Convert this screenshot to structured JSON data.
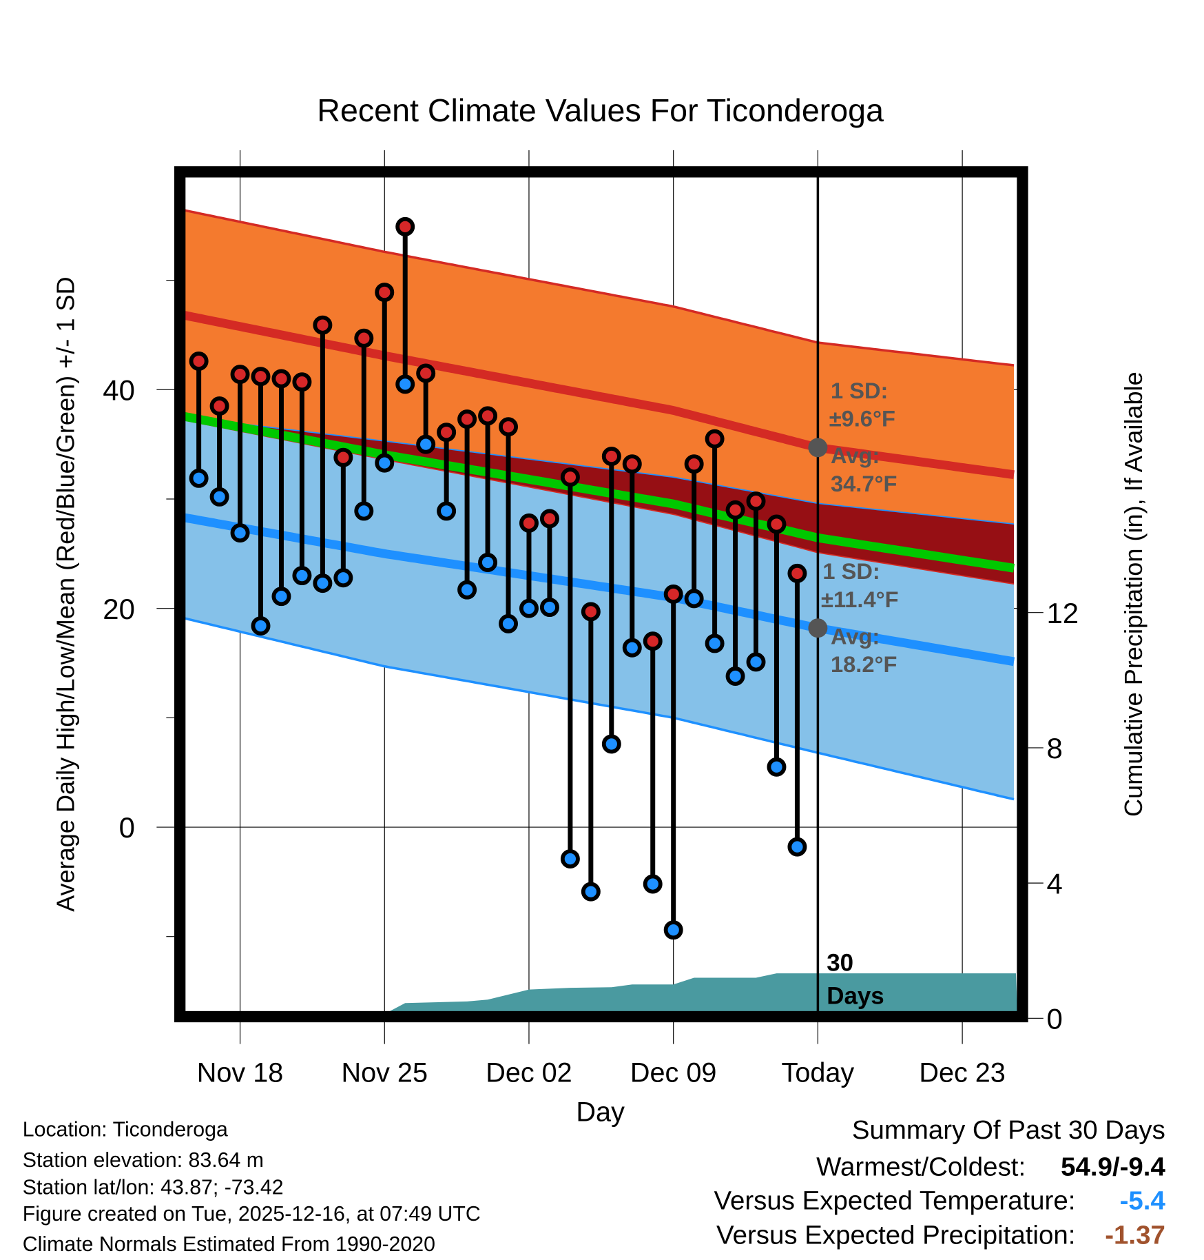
{
  "chart_data": {
    "type": "line",
    "title": "Recent Climate Values For Ticonderoga",
    "xlabel": "Day",
    "ylabel": "Average Daily High/Low/Mean (Red/Blue/Green) +/- 1 SD",
    "ylabel_right": "Cumulative Precipitation (in), If Available",
    "x_tick_labels": [
      "Nov 18",
      "Nov 25",
      "Dec 02",
      "Dec 09",
      "Today",
      "Dec 23"
    ],
    "x_tick_days": [
      3,
      10,
      17,
      24,
      31,
      38
    ],
    "x_day_zero": "Nov 15",
    "xlim_days": [
      0.3,
      40.6
    ],
    "y_tick_labels": [
      "40",
      "20",
      "0"
    ],
    "y_ticks": [
      40,
      20,
      0
    ],
    "y_minor_ticks": [
      50,
      30,
      10,
      -10
    ],
    "ylim": [
      -16.8,
      57.6
    ],
    "y_right_tick_labels": [
      "12",
      "8",
      "4",
      "0"
    ],
    "y_right_ticks": [
      12,
      8,
      4,
      0
    ],
    "grid": true,
    "series": [
      {
        "name": "Daily High",
        "color": "#d62728",
        "days": [
          1,
          2,
          3,
          4,
          5,
          6,
          7,
          8,
          9,
          10,
          11,
          12,
          13,
          14,
          15,
          16,
          17,
          18,
          19,
          20,
          21,
          22,
          23,
          24,
          25,
          26,
          27,
          28,
          29,
          30
        ],
        "values": [
          42.6,
          38.5,
          41.4,
          41.2,
          41.0,
          40.7,
          45.9,
          33.8,
          44.7,
          48.9,
          54.9,
          41.5,
          36.1,
          37.3,
          37.6,
          36.6,
          27.8,
          28.2,
          32.0,
          19.7,
          33.9,
          33.2,
          17.0,
          21.3,
          33.2,
          35.5,
          29.0,
          29.8,
          27.7,
          23.2
        ]
      },
      {
        "name": "Daily Low",
        "color": "#1e90ff",
        "days": [
          1,
          2,
          3,
          4,
          5,
          6,
          7,
          8,
          9,
          10,
          11,
          12,
          13,
          14,
          15,
          16,
          17,
          18,
          19,
          20,
          21,
          22,
          23,
          24,
          25,
          26,
          27,
          28,
          29,
          30
        ],
        "values": [
          31.9,
          30.2,
          26.9,
          18.4,
          21.1,
          23.0,
          22.3,
          22.8,
          28.9,
          33.3,
          40.5,
          35.0,
          28.9,
          21.7,
          24.2,
          18.6,
          20.0,
          20.1,
          -2.9,
          -5.9,
          7.6,
          16.4,
          -5.2,
          -9.4,
          20.9,
          16.8,
          13.8,
          15.1,
          5.5,
          -1.8
        ]
      }
    ],
    "normals": {
      "days": [
        0.3,
        10,
        24,
        31,
        40.6
      ],
      "high_avg": [
        46.8,
        43.1,
        38.1,
        34.7,
        32.2
      ],
      "high_sd": [
        9.6,
        9.5,
        9.5,
        9.6,
        10.0
      ],
      "low_avg": [
        28.3,
        25.0,
        21.0,
        18.2,
        15.1
      ],
      "low_sd": [
        9.2,
        10.3,
        11.0,
        11.4,
        12.6
      ]
    },
    "precip": {
      "days": [
        9.6,
        11,
        14,
        15,
        17,
        19,
        21,
        22,
        24,
        25,
        28,
        29,
        40.6
      ],
      "values": [
        0,
        0.45,
        0.5,
        0.55,
        0.85,
        0.9,
        0.92,
        1.0,
        1.0,
        1.2,
        1.2,
        1.33,
        1.33
      ]
    },
    "colors": {
      "high_band": "#f47a2e",
      "low_band": "#85c1e9",
      "overlap": "#960f14",
      "high_line": "#d42a24",
      "low_line": "#1e90ff",
      "mean_line": "#00c800",
      "precip": "#4a9aa0",
      "annotation": "#555555"
    },
    "annotations": {
      "high_sd": "1 SD:",
      "high_sd_value": "±9.6°F",
      "high_avg": "Avg:",
      "high_avg_value": "34.7°F",
      "low_sd": "1 SD:",
      "low_sd_value": "±11.4°F",
      "low_avg": "Avg:",
      "low_avg_value": "18.2°F",
      "window_num": "30",
      "window_unit": "Days"
    }
  },
  "footer": {
    "location": "Location: Ticonderoga",
    "elevation": "Station elevation: 83.64 m",
    "latlon": "Station lat/lon: 43.87; -73.42",
    "created": "Figure created on Tue, 2025-12-16, at 07:49 UTC",
    "normals": "Climate Normals Estimated From 1990-2020"
  },
  "summary": {
    "title": "Summary Of Past 30 Days",
    "warmest_label": "Warmest/Coldest:",
    "warmest_value": "54.9/-9.4",
    "temp_label": "Versus Expected Temperature:",
    "temp_value": "-5.4",
    "temp_color": "#1e90ff",
    "precip_label": "Versus Expected Precipitation:",
    "precip_value": "-1.37",
    "precip_color": "#a0522d"
  }
}
